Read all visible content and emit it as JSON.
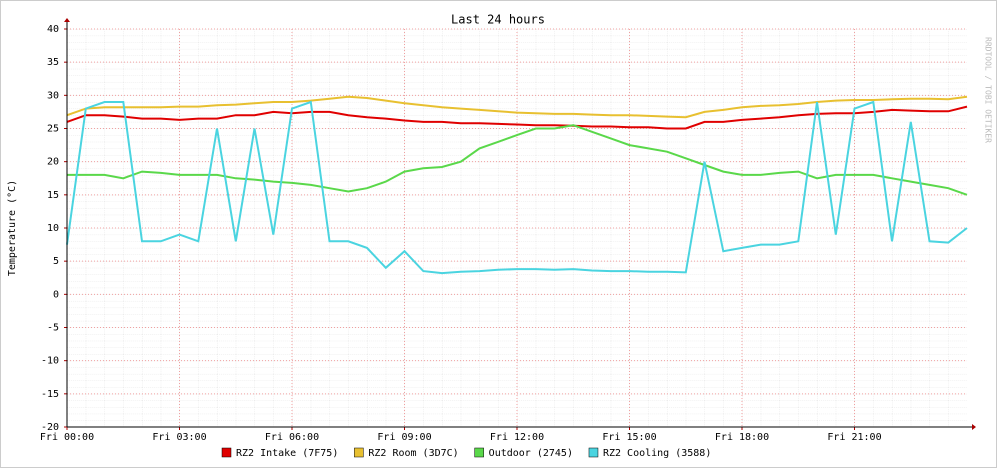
{
  "chart_data": {
    "type": "line",
    "title": "Last 24 hours",
    "y_label": "Temperature (°C)",
    "watermark": "RRDTOOL / TOBI OETIKER",
    "x": [
      0,
      0.5,
      1,
      1.5,
      2,
      2.5,
      3,
      3.5,
      4,
      4.5,
      5,
      5.5,
      6,
      6.5,
      7,
      7.5,
      8,
      8.5,
      9,
      9.5,
      10,
      10.5,
      11,
      11.5,
      12,
      12.5,
      13,
      13.5,
      14,
      14.5,
      15,
      15.5,
      16,
      16.5,
      17,
      17.5,
      18,
      18.5,
      19,
      19.5,
      20,
      20.5,
      21,
      21.5,
      22,
      22.5,
      23,
      23.5,
      24
    ],
    "xlim": [
      0,
      24
    ],
    "xticks": [
      {
        "value": 0,
        "label": "Fri 00:00"
      },
      {
        "value": 3,
        "label": "Fri 03:00"
      },
      {
        "value": 6,
        "label": "Fri 06:00"
      },
      {
        "value": 9,
        "label": "Fri 09:00"
      },
      {
        "value": 12,
        "label": "Fri 12:00"
      },
      {
        "value": 15,
        "label": "Fri 15:00"
      },
      {
        "value": 18,
        "label": "Fri 18:00"
      },
      {
        "value": 21,
        "label": "Fri 21:00"
      }
    ],
    "ylim": [
      -20,
      40
    ],
    "yticks": [
      -20,
      -15,
      -10,
      -5,
      0,
      5,
      10,
      15,
      20,
      25,
      30,
      35,
      40
    ],
    "grid": true,
    "series": [
      {
        "name": "RZ2 Intake (7F75)",
        "color": "#e00000",
        "values": [
          26,
          27,
          27,
          26.8,
          26.5,
          26.5,
          26.3,
          26.5,
          26.5,
          27,
          27,
          27.5,
          27.3,
          27.5,
          27.5,
          27,
          26.7,
          26.5,
          26.2,
          26,
          26,
          25.8,
          25.8,
          25.7,
          25.6,
          25.5,
          25.5,
          25.4,
          25.3,
          25.3,
          25.2,
          25.2,
          25,
          25,
          26,
          26,
          26.3,
          26.5,
          26.7,
          27,
          27.2,
          27.3,
          27.3,
          27.5,
          27.8,
          27.7,
          27.6,
          27.6,
          28.3
        ]
      },
      {
        "name": "RZ2 Room (3D7C)",
        "color": "#e8c030",
        "values": [
          27,
          28,
          28.2,
          28.2,
          28.2,
          28.2,
          28.3,
          28.3,
          28.5,
          28.6,
          28.8,
          29,
          29,
          29.2,
          29.5,
          29.8,
          29.6,
          29.2,
          28.8,
          28.5,
          28.2,
          28,
          27.8,
          27.6,
          27.4,
          27.3,
          27.2,
          27.2,
          27.1,
          27,
          27,
          26.9,
          26.8,
          26.7,
          27.5,
          27.8,
          28.2,
          28.4,
          28.5,
          28.7,
          29,
          29.2,
          29.3,
          29.3,
          29.4,
          29.5,
          29.5,
          29.4,
          29.8
        ]
      },
      {
        "name": "Outdoor (2745)",
        "color": "#5ad84a",
        "values": [
          18,
          18,
          18,
          17.5,
          18.5,
          18.3,
          18,
          18,
          18,
          17.5,
          17.3,
          17,
          16.8,
          16.5,
          16,
          15.5,
          16,
          17,
          18.5,
          19,
          19.2,
          20,
          22,
          23,
          24,
          25,
          25,
          25.5,
          24.5,
          23.5,
          22.5,
          22,
          21.5,
          20.5,
          19.5,
          18.5,
          18,
          18,
          18.3,
          18.5,
          17.5,
          18,
          18,
          18,
          17.5,
          17,
          16.5,
          16,
          15
        ]
      },
      {
        "name": "RZ2 Cooling (3588)",
        "color": "#4ad4e0",
        "values": [
          7.5,
          28,
          29,
          29,
          8,
          8,
          9,
          8,
          25,
          8,
          25,
          9,
          28,
          29,
          8,
          8,
          7,
          4,
          6.5,
          3.5,
          3.2,
          3.4,
          3.5,
          3.7,
          3.8,
          3.8,
          3.7,
          3.8,
          3.6,
          3.5,
          3.5,
          3.4,
          3.4,
          3.3,
          20,
          6.5,
          7,
          7.5,
          7.5,
          8,
          29,
          9,
          28,
          29,
          8,
          26,
          8,
          7.8,
          10
        ]
      }
    ]
  }
}
